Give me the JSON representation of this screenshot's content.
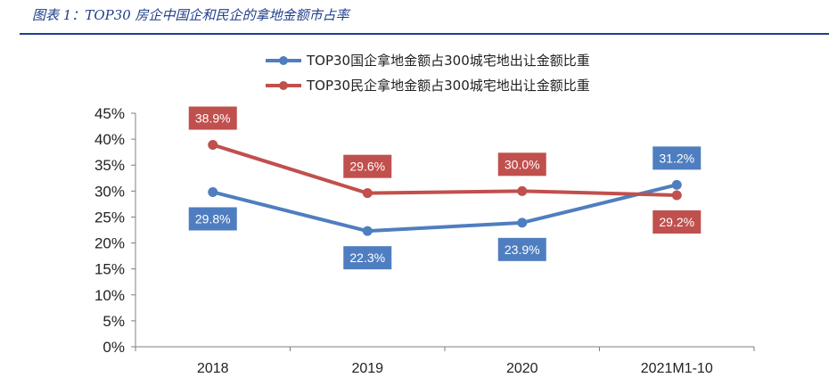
{
  "figure": {
    "title": "图表 1：TOP30 房企中国企和民企的拿地金额市占率"
  },
  "chart_data": {
    "type": "line",
    "categories": [
      "2018",
      "2019",
      "2020",
      "2021M1-10"
    ],
    "ylim": [
      0,
      45
    ],
    "yticks": [
      "0%",
      "5%",
      "10%",
      "15%",
      "20%",
      "25%",
      "30%",
      "35%",
      "40%",
      "45%"
    ],
    "grid": false,
    "legend_position": "top",
    "series": [
      {
        "name": "TOP30国企拿地金额占300城宅地出让金额比重",
        "values": [
          29.8,
          22.3,
          23.9,
          31.2
        ],
        "labels": [
          "29.8%",
          "22.3%",
          "23.9%",
          "31.2%"
        ],
        "label_position": [
          "below",
          "below",
          "below",
          "above"
        ],
        "color": "#4f7ec0",
        "label_bg": "#4f7ec0"
      },
      {
        "name": "TOP30民企拿地金额占300城宅地出让金额比重",
        "values": [
          38.9,
          29.6,
          30.0,
          29.2
        ],
        "labels": [
          "38.9%",
          "29.6%",
          "30.0%",
          "29.2%"
        ],
        "label_position": [
          "above",
          "above",
          "above",
          "below"
        ],
        "color": "#c0504d",
        "label_bg": "#c0504d"
      }
    ]
  }
}
